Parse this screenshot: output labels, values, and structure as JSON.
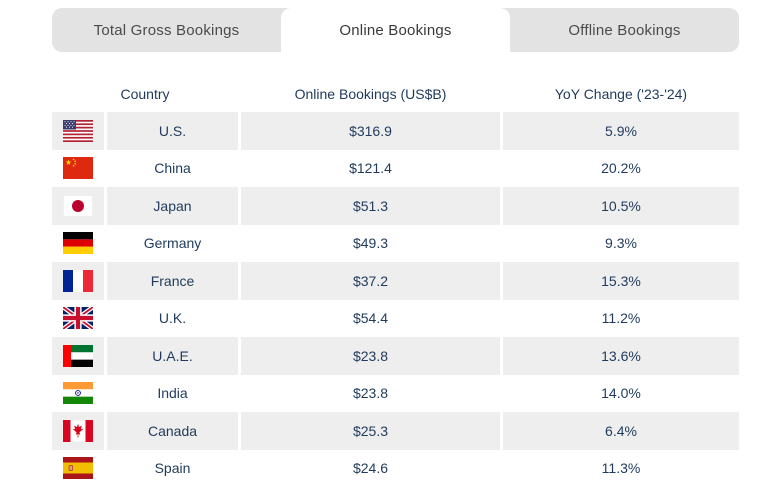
{
  "tabs": {
    "items": [
      {
        "label": "Total Gross Bookings",
        "active": false
      },
      {
        "label": "Online Bookings",
        "active": true
      },
      {
        "label": "Offline Bookings",
        "active": false
      }
    ]
  },
  "table": {
    "headers": [
      "Country",
      "Online Bookings (US$B)",
      "YoY Change ('23-'24)"
    ],
    "rows": [
      {
        "flag_icon": "us-flag-icon",
        "country": "U.S.",
        "online_bookings": "$316.9",
        "yoy_change": "5.9%"
      },
      {
        "flag_icon": "china-flag-icon",
        "country": "China",
        "online_bookings": "$121.4",
        "yoy_change": "20.2%"
      },
      {
        "flag_icon": "japan-flag-icon",
        "country": "Japan",
        "online_bookings": "$51.3",
        "yoy_change": "10.5%"
      },
      {
        "flag_icon": "germany-flag-icon",
        "country": "Germany",
        "online_bookings": "$49.3",
        "yoy_change": "9.3%"
      },
      {
        "flag_icon": "france-flag-icon",
        "country": "France",
        "online_bookings": "$37.2",
        "yoy_change": "15.3%"
      },
      {
        "flag_icon": "uk-flag-icon",
        "country": "U.K.",
        "online_bookings": "$54.4",
        "yoy_change": "11.2%"
      },
      {
        "flag_icon": "uae-flag-icon",
        "country": "U.A.E.",
        "online_bookings": "$23.8",
        "yoy_change": "13.6%"
      },
      {
        "flag_icon": "india-flag-icon",
        "country": "India",
        "online_bookings": "$23.8",
        "yoy_change": "14.0%"
      },
      {
        "flag_icon": "canada-flag-icon",
        "country": "Canada",
        "online_bookings": "$25.3",
        "yoy_change": "6.4%"
      },
      {
        "flag_icon": "spain-flag-icon",
        "country": "Spain",
        "online_bookings": "$24.6",
        "yoy_change": "11.3%"
      }
    ]
  },
  "colors": {
    "text_navy": "#1f3a5c",
    "row_alt_bg": "#efeeee",
    "tabbar_bg": "#e4e3e3",
    "tab_text": "#4b4b4b",
    "active_tab_bg": "#ffffff"
  }
}
